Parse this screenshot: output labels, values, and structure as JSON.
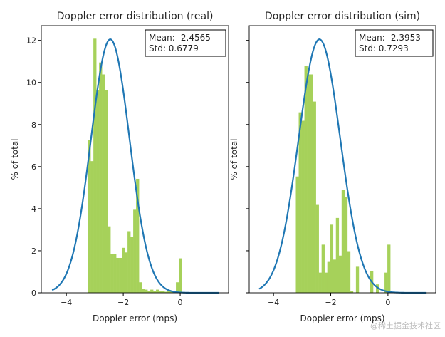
{
  "chart_data": [
    {
      "type": "bar",
      "title": "Doppler error distribution (real)",
      "xlabel": "Doppler error (mps)",
      "ylabel": "% of total",
      "xlim": [
        -4.88,
        1.7
      ],
      "ylim": [
        0,
        12.7
      ],
      "xticks": [
        -4,
        -2,
        0
      ],
      "yticks": [
        0,
        2,
        4,
        6,
        8,
        10,
        12
      ],
      "bin_start": -3.25,
      "bin_width": 0.1,
      "values": [
        7.28,
        6.26,
        12.08,
        9.65,
        10.95,
        10.38,
        9.65,
        3.16,
        1.86,
        1.86,
        1.66,
        1.66,
        2.14,
        1.92,
        2.93,
        2.65,
        3.95,
        5.42,
        0.5,
        0.2,
        0.15,
        0.1,
        0.15,
        0.1,
        0.15,
        0.1,
        0.1,
        0.05,
        0.1,
        0.05,
        0.05,
        0.5,
        1.64
      ],
      "bar_color": "#a6d15a",
      "fit": {
        "mean": -2.4565,
        "std": 0.6779,
        "peak": 12.05,
        "x_range": [
          -4.5,
          1.35
        ],
        "color": "#1f77b4"
      },
      "annotation": [
        "Mean: -2.4565",
        "Std: 0.6779"
      ],
      "grid": false
    },
    {
      "type": "bar",
      "title": "Doppler error distribution (sim)",
      "xlabel": "Doppler error (mps)",
      "ylabel": "% of total",
      "xlim": [
        -4.85,
        1.67
      ],
      "ylim": [
        0,
        12.7
      ],
      "xticks": [
        -4,
        -2,
        0
      ],
      "yticks": [
        0,
        2,
        4,
        6,
        8,
        10,
        12
      ],
      "bin_start": -3.22,
      "bin_width": 0.1,
      "values": [
        5.53,
        8.58,
        8.18,
        10.78,
        10.38,
        10.38,
        9.09,
        4.18,
        0.96,
        2.29,
        0.96,
        1.47,
        3.24,
        1.58,
        3.56,
        1.77,
        4.91,
        4.57,
        1.98,
        0.08,
        0,
        1.24,
        0,
        0,
        0,
        0,
        1.05,
        0,
        0.4,
        0,
        0,
        0.96,
        2.29
      ],
      "bar_color": "#a6d15a",
      "fit": {
        "mean": -2.3953,
        "std": 0.7293,
        "peak": 12.05,
        "x_range": [
          -4.5,
          1.35
        ],
        "color": "#1f77b4"
      },
      "annotation": [
        "Mean: -2.3953",
        "Std: 0.7293"
      ],
      "grid": false
    }
  ],
  "watermark": "@稀土掘金技术社区"
}
